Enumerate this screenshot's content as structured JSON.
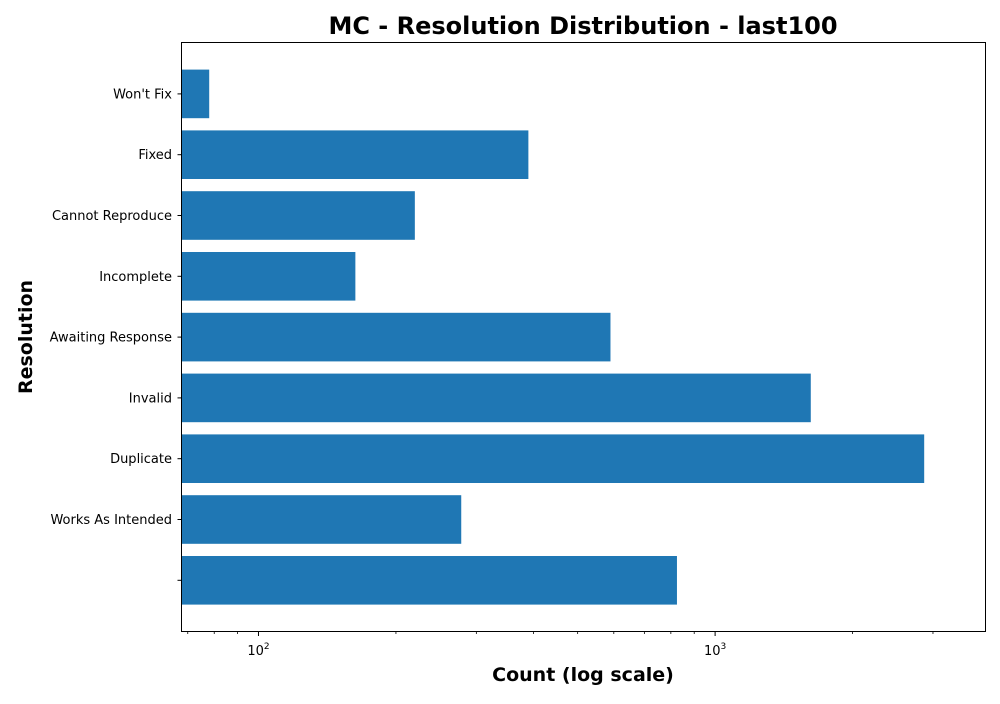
{
  "chart_data": {
    "type": "bar",
    "orientation": "horizontal",
    "title": "MC - Resolution Distribution - last100",
    "xlabel": "Count (log scale)",
    "ylabel": "Resolution",
    "x_scale": "log",
    "xlim": [
      68,
      3900
    ],
    "x_tick_labels": [
      {
        "value": 100,
        "base": "10",
        "exponent": "2"
      },
      {
        "value": 1000,
        "base": "10",
        "exponent": "3"
      }
    ],
    "categories": [
      "Won't Fix",
      "Fixed",
      "Cannot Reproduce",
      "Incomplete",
      "Awaiting Response",
      "Invalid",
      "Duplicate",
      "Works As Intended",
      ""
    ],
    "values": [
      78,
      390,
      220,
      163,
      590,
      1620,
      2870,
      278,
      825
    ],
    "bar_color": "#1f77b4",
    "grid": false
  }
}
